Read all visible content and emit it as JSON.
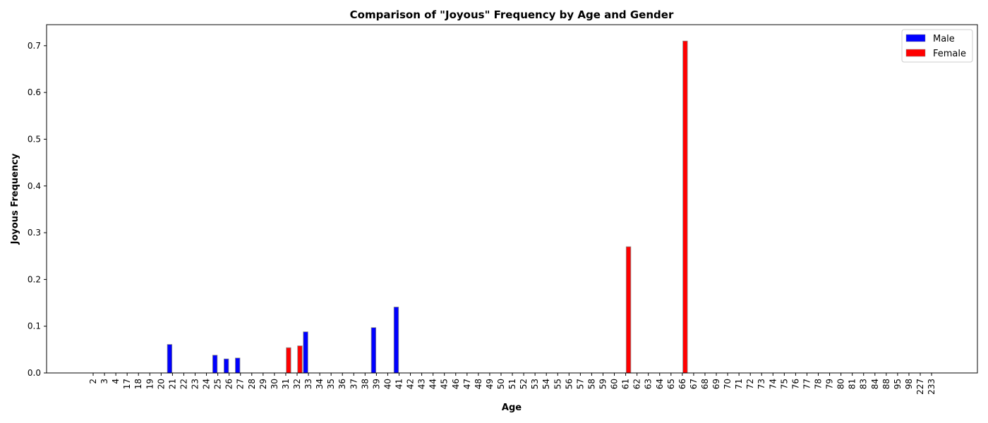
{
  "chart_data": {
    "type": "bar",
    "title": "Comparison of \"Joyous\" Frequency by Age and Gender",
    "xlabel": "Age",
    "ylabel": "Joyous Frequency",
    "ylim": [
      0,
      0.745
    ],
    "yticks": [
      "0.0",
      "0.1",
      "0.2",
      "0.3",
      "0.4",
      "0.5",
      "0.6",
      "0.7"
    ],
    "grid": false,
    "legend_position": "top-right",
    "categories": [
      "2",
      "3",
      "4",
      "17",
      "18",
      "19",
      "20",
      "21",
      "22",
      "23",
      "24",
      "25",
      "26",
      "27",
      "28",
      "29",
      "30",
      "31",
      "32",
      "33",
      "34",
      "35",
      "36",
      "37",
      "38",
      "39",
      "40",
      "41",
      "42",
      "43",
      "44",
      "45",
      "46",
      "47",
      "48",
      "49",
      "50",
      "51",
      "52",
      "53",
      "54",
      "55",
      "56",
      "57",
      "58",
      "59",
      "60",
      "61",
      "62",
      "63",
      "64",
      "65",
      "66",
      "67",
      "68",
      "69",
      "70",
      "71",
      "72",
      "73",
      "74",
      "75",
      "76",
      "77",
      "78",
      "79",
      "80",
      "81",
      "83",
      "84",
      "88",
      "95",
      "98",
      "227",
      "233"
    ],
    "series": [
      {
        "name": "Male",
        "color": "#0000ff",
        "values": [
          0,
          0,
          0,
          0,
          0,
          0,
          0,
          0.061,
          0,
          0,
          0,
          0.038,
          0.03,
          0.032,
          0,
          0,
          0,
          0,
          0,
          0.088,
          0,
          0,
          0,
          0,
          0,
          0.097,
          0,
          0.141,
          0,
          0,
          0,
          0,
          0,
          0,
          0,
          0,
          0,
          0,
          0,
          0,
          0,
          0,
          0,
          0,
          0,
          0,
          0,
          0,
          0,
          0,
          0,
          0,
          0,
          0,
          0,
          0,
          0,
          0,
          0,
          0,
          0,
          0,
          0,
          0,
          0,
          0,
          0,
          0,
          0,
          0,
          0,
          0,
          0,
          0,
          0
        ]
      },
      {
        "name": "Female",
        "color": "#ff0000",
        "values": [
          0,
          0,
          0,
          0,
          0,
          0,
          0,
          0,
          0,
          0,
          0,
          0,
          0,
          0,
          0,
          0,
          0,
          0.054,
          0.058,
          0,
          0,
          0,
          0,
          0,
          0,
          0,
          0,
          0,
          0,
          0,
          0,
          0,
          0,
          0,
          0,
          0,
          0,
          0,
          0,
          0,
          0,
          0,
          0,
          0,
          0,
          0,
          0,
          0.27,
          0,
          0,
          0,
          0,
          0.71,
          0,
          0,
          0,
          0,
          0,
          0,
          0,
          0,
          0,
          0,
          0,
          0,
          0,
          0,
          0,
          0,
          0,
          0,
          0,
          0,
          0,
          0
        ]
      }
    ]
  }
}
